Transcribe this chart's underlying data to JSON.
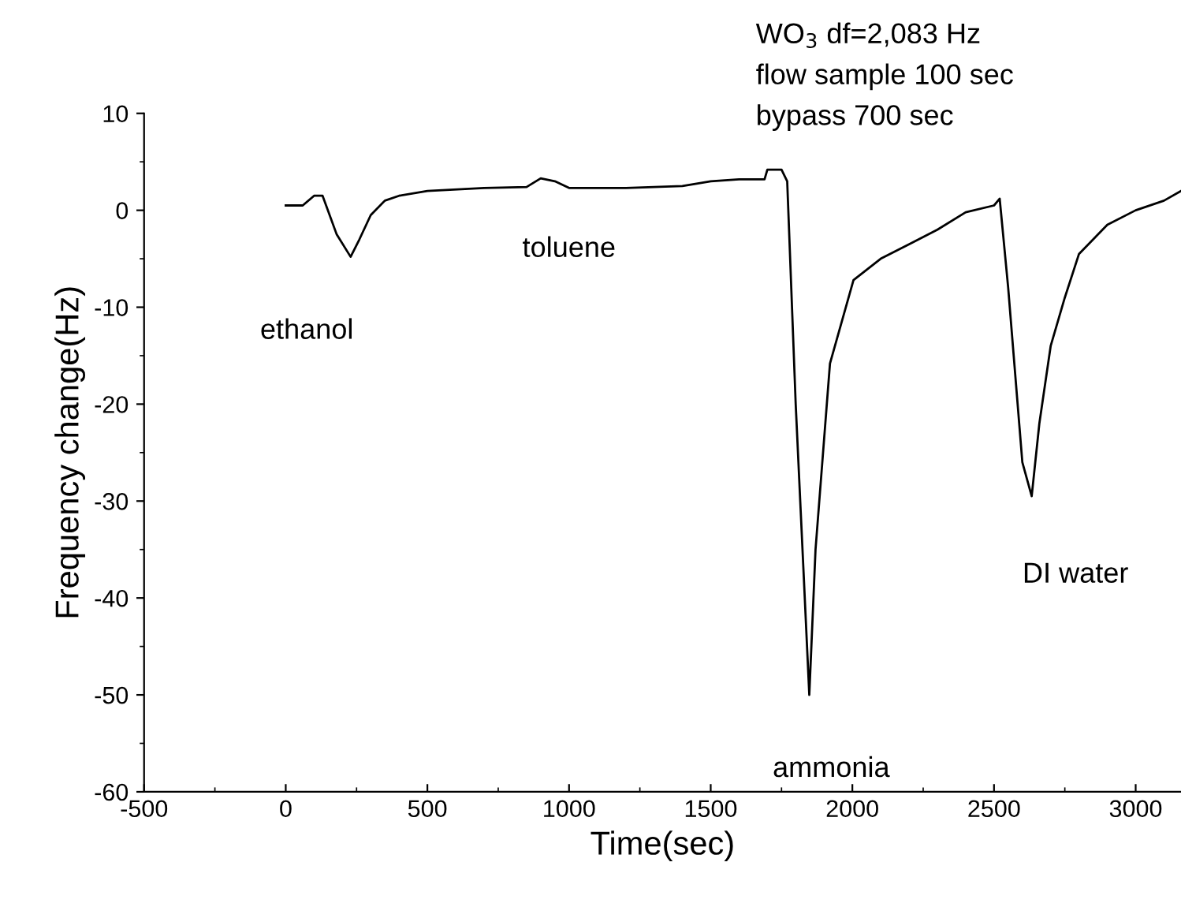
{
  "chart_data": {
    "type": "line",
    "xlabel": "Time(sec)",
    "ylabel": "Frequency change(Hz)",
    "xlim": [
      -500,
      3160
    ],
    "xticks": [
      -500,
      0,
      500,
      1000,
      1500,
      2000,
      2500,
      3000
    ],
    "ylim": [
      -60,
      10
    ],
    "yticks": [
      -60,
      -50,
      -40,
      -30,
      -20,
      -10,
      0,
      10
    ],
    "grid": false,
    "legend": false,
    "marker": "none",
    "line_style": "solid",
    "series": [
      {
        "color": "#000000",
        "x": [
          0,
          60,
          100,
          130,
          180,
          229,
          260,
          300,
          350,
          400,
          500,
          700,
          850,
          900,
          950,
          1000,
          1200,
          1400,
          1500,
          1600,
          1690,
          1700,
          1750,
          1770,
          1800,
          1848,
          1870,
          1921,
          2004,
          2100,
          2200,
          2300,
          2400,
          2500,
          2520,
          2550,
          2600,
          2633,
          2660,
          2700,
          2750,
          2800,
          2900,
          3000,
          3100,
          3160
        ],
        "values": [
          0.5,
          0.5,
          1.5,
          1.5,
          -2.5,
          -4.8,
          -3,
          -0.5,
          1,
          1.5,
          2,
          2.3,
          2.4,
          3.3,
          3,
          2.3,
          2.3,
          2.5,
          3,
          3.2,
          3.2,
          4.2,
          4.2,
          3,
          -20,
          -50,
          -35,
          -15.8,
          -7.2,
          -5,
          -3.5,
          -2,
          -0.2,
          0.5,
          1.2,
          -8,
          -26,
          -29.5,
          -22,
          -14,
          -9,
          -4.5,
          -1.5,
          0,
          1,
          2
        ]
      }
    ],
    "annotations": [
      {
        "text": "ethanol",
        "x": 229,
        "y": -4.8
      },
      {
        "text": "toluene",
        "x": 1000,
        "y": 2.3
      },
      {
        "text": "ammonia",
        "x": 1848,
        "y": -50
      },
      {
        "text": "DI water",
        "x": 2633,
        "y": -29.5
      },
      "WO$_{3}$ df=2,083 Hz",
      "flow sample 100 sec",
      "bypass 700 sec"
    ]
  }
}
